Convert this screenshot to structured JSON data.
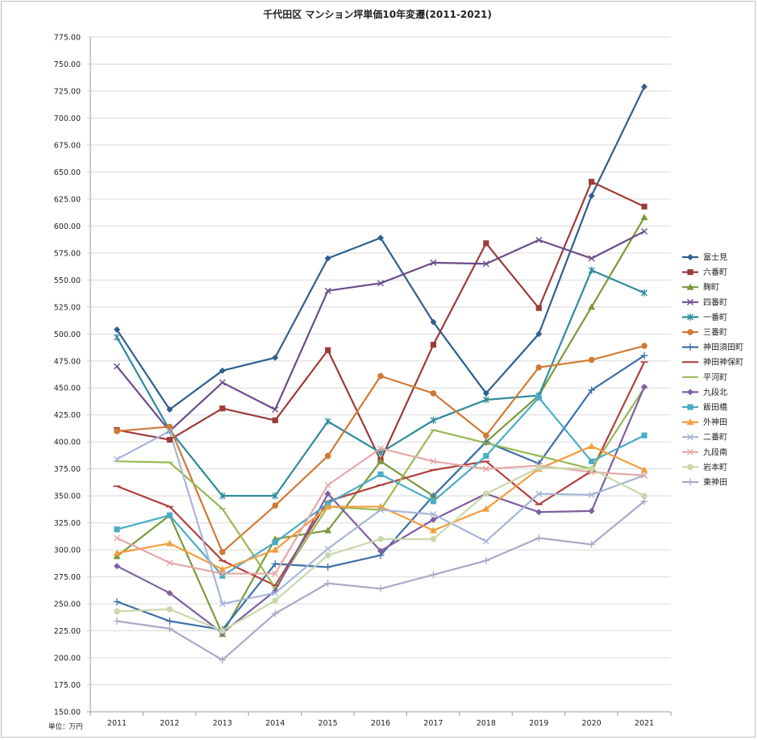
{
  "chart_data": {
    "type": "line",
    "title": "千代田区 マンション坪単価10年変遷(2011-2021)",
    "unit_label": "単位：万円",
    "categories": [
      "2011",
      "2012",
      "2013",
      "2014",
      "2015",
      "2016",
      "2017",
      "2018",
      "2019",
      "2020",
      "2021"
    ],
    "ylim": [
      150,
      775
    ],
    "ytick_step": 25,
    "grid": true,
    "legend_position": "right",
    "series": [
      {
        "name": "富士見",
        "color": "#2E5F8F",
        "marker": "diamond",
        "values": [
          504,
          430,
          466,
          478,
          570,
          589,
          511,
          445,
          500,
          628,
          729
        ]
      },
      {
        "name": "六番町",
        "color": "#9B3C3A",
        "marker": "square",
        "values": [
          411,
          402,
          431,
          420,
          485,
          383,
          490,
          584,
          524,
          641,
          618
        ]
      },
      {
        "name": "麹町",
        "color": "#7A9A3C",
        "marker": "triangle",
        "values": [
          294,
          332,
          222,
          310,
          318,
          382,
          350,
          400,
          443,
          525,
          608
        ]
      },
      {
        "name": "四番町",
        "color": "#6B4C8A",
        "marker": "x",
        "values": [
          470,
          410,
          455,
          430,
          540,
          547,
          566,
          565,
          587,
          570,
          595
        ]
      },
      {
        "name": "一番町",
        "color": "#2E8B9B",
        "marker": "star",
        "values": [
          497,
          411,
          350,
          350,
          419,
          390,
          420,
          439,
          443,
          559,
          538
        ]
      },
      {
        "name": "三番町",
        "color": "#D07A35",
        "marker": "circle",
        "values": [
          410,
          414,
          298,
          341,
          387,
          461,
          445,
          406,
          469,
          476,
          489
        ]
      },
      {
        "name": "神田須田町",
        "color": "#3E6FA8",
        "marker": "plus",
        "values": [
          252,
          234,
          226,
          287,
          284,
          295,
          350,
          400,
          380,
          448,
          480
        ]
      },
      {
        "name": "神田神保町",
        "color": "#B0413E",
        "marker": "dash",
        "values": [
          359,
          340,
          290,
          267,
          345,
          360,
          374,
          382,
          342,
          373,
          474
        ]
      },
      {
        "name": "平河町",
        "color": "#98B954",
        "marker": "line",
        "values": [
          382,
          381,
          338,
          265,
          340,
          337,
          411,
          399,
          387,
          375,
          450
        ]
      },
      {
        "name": "九段北",
        "color": "#7E5FA0",
        "marker": "diamond",
        "values": [
          285,
          260,
          223,
          262,
          352,
          299,
          328,
          352,
          335,
          336,
          451
        ]
      },
      {
        "name": "飯田橋",
        "color": "#4BACC6",
        "marker": "square",
        "values": [
          319,
          332,
          276,
          307,
          343,
          370,
          345,
          387,
          441,
          382,
          406
        ]
      },
      {
        "name": "外神田",
        "color": "#F59D3D",
        "marker": "triangle",
        "values": [
          297,
          306,
          282,
          300,
          340,
          340,
          318,
          338,
          375,
          396,
          374
        ]
      },
      {
        "name": "二番町",
        "color": "#A5B6D8",
        "marker": "x",
        "values": [
          384,
          410,
          250,
          260,
          301,
          337,
          333,
          308,
          352,
          351,
          369
        ]
      },
      {
        "name": "九段南",
        "color": "#E6A7A5",
        "marker": "x",
        "values": [
          311,
          288,
          278,
          278,
          360,
          394,
          382,
          375,
          378,
          372,
          369
        ]
      },
      {
        "name": "岩本町",
        "color": "#C9D8AA",
        "marker": "circle",
        "values": [
          243,
          245,
          225,
          253,
          295,
          310,
          310,
          352,
          376,
          375,
          350
        ]
      },
      {
        "name": "東神田",
        "color": "#B2A6C6",
        "marker": "plus",
        "values": [
          234,
          227,
          198,
          241,
          269,
          264,
          277,
          290,
          311,
          305,
          345
        ]
      }
    ]
  }
}
